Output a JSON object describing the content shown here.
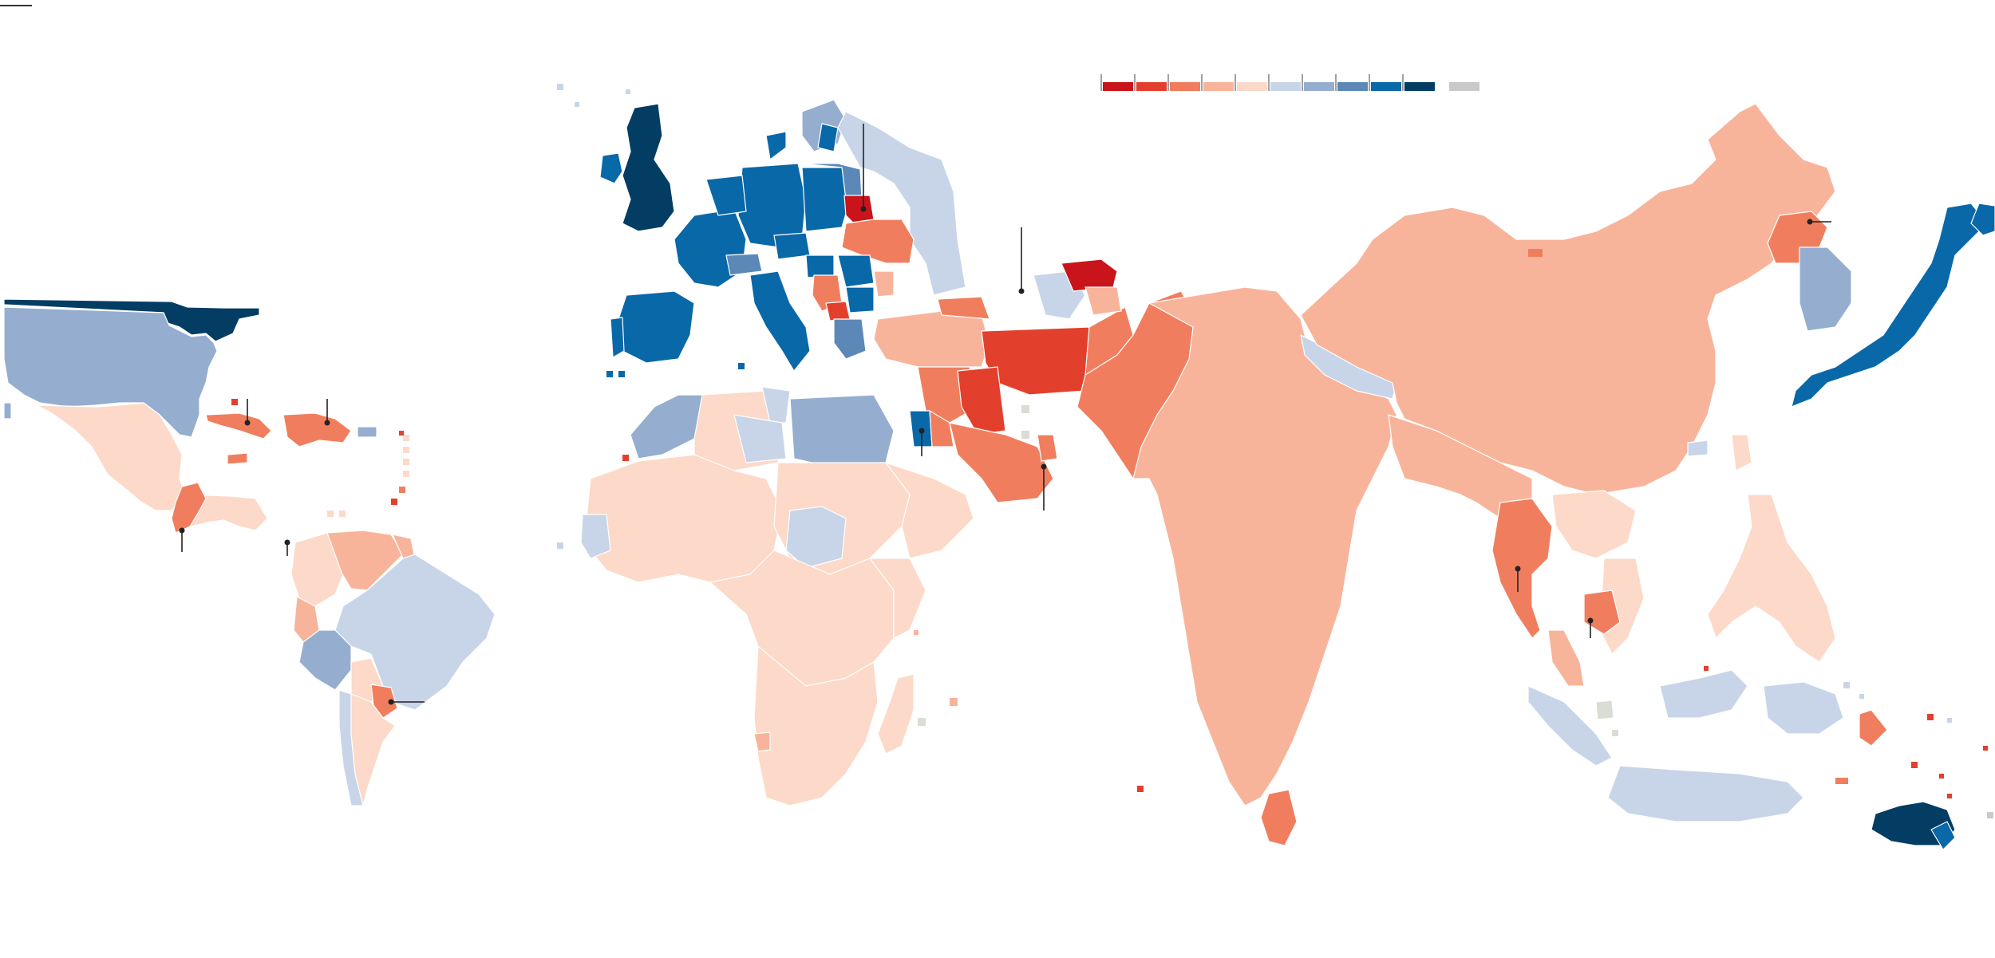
{
  "legend": {
    "swatches": [
      {
        "color": "#c8141a"
      },
      {
        "color": "#e2402d"
      },
      {
        "color": "#f07e5e"
      },
      {
        "color": "#f8b49a"
      },
      {
        "color": "#fcd9c8"
      },
      {
        "color": "#c8d5e8"
      },
      {
        "color": "#95aecf"
      },
      {
        "color": "#5c88b8"
      },
      {
        "color": "#0868a8"
      },
      {
        "color": "#043d63"
      }
    ],
    "no_data": {
      "color": "#c9c9c9"
    }
  },
  "colors": {
    "darkest_red": "#c8141a",
    "red": "#e2402d",
    "mid_red": "#f07e5e",
    "light_red": "#f8b49a",
    "pale_red": "#fcd9c8",
    "pale_blue": "#c8d5e8",
    "light_blue": "#95aecf",
    "mid_blue": "#5c88b8",
    "blue": "#0868a8",
    "darkest_blue": "#043d63",
    "no_data": "#c9c9c9",
    "disputed": "#d9ddd3"
  }
}
